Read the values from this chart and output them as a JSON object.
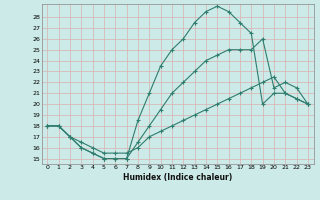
{
  "xlabel": "Humidex (Indice chaleur)",
  "bg_color": "#cceae7",
  "line_color": "#2e7d6e",
  "grid_color": "#b8dbd8",
  "xlim": [
    -0.5,
    23.5
  ],
  "ylim": [
    14.5,
    29.2
  ],
  "xticks": [
    0,
    1,
    2,
    3,
    4,
    5,
    6,
    7,
    8,
    9,
    10,
    11,
    12,
    13,
    14,
    15,
    16,
    17,
    18,
    19,
    20,
    21,
    22,
    23
  ],
  "yticks": [
    15,
    16,
    17,
    18,
    19,
    20,
    21,
    22,
    23,
    24,
    25,
    26,
    27,
    28
  ],
  "line1_y": [
    18,
    18,
    17,
    16,
    15.5,
    15,
    15,
    15,
    18.5,
    21,
    23.5,
    25,
    26,
    27.5,
    28.5,
    29,
    28.5,
    27.5,
    26.5,
    20,
    21,
    21,
    20.5,
    20
  ],
  "line2_y": [
    18,
    18,
    17,
    16,
    15.5,
    15,
    15,
    15,
    16.5,
    18,
    19.5,
    21,
    22,
    23,
    24,
    24.5,
    25,
    25,
    25,
    26,
    21.5,
    22,
    21.5,
    20
  ],
  "line3_y": [
    18,
    18,
    17,
    16.5,
    16,
    15.5,
    15.5,
    15.5,
    16,
    17,
    17.5,
    18,
    18.5,
    19,
    19.5,
    20,
    20.5,
    21,
    21.5,
    22,
    22.5,
    21,
    20.5,
    20
  ]
}
